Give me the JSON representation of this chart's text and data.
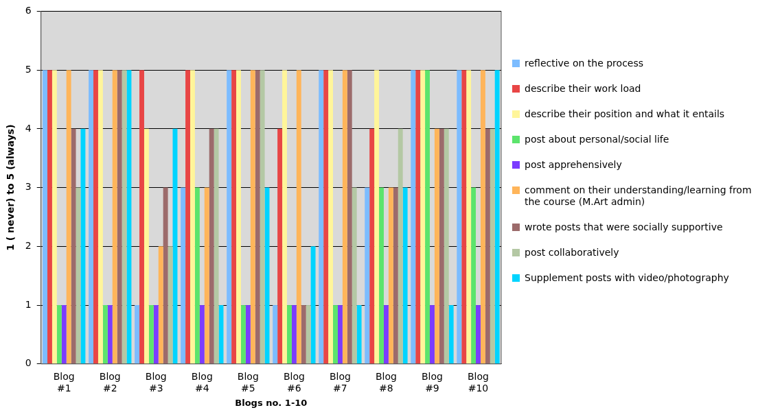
{
  "chart_data": {
    "type": "bar",
    "xlabel": "Blogs no. 1-10",
    "ylabel": "1 ( never) to 5 (always)",
    "categories": [
      "Blog #1",
      "Blog #2",
      "Blog #3",
      "Blog #4",
      "Blog #5",
      "Blog #6",
      "Blog #7",
      "Blog #8",
      "Blog #9",
      "Blog #10"
    ],
    "series": [
      {
        "name": "reflective on the process",
        "color": "#7cbcff",
        "values": [
          5,
          5,
          1,
          3,
          5,
          1,
          5,
          3,
          5,
          5
        ]
      },
      {
        "name": "describe their work load",
        "color": "#e84545",
        "values": [
          5,
          5,
          5,
          5,
          5,
          4,
          5,
          4,
          5,
          5
        ]
      },
      {
        "name": "describe their  position and what  it entails",
        "color": "#fff59a",
        "values": [
          5,
          5,
          4,
          5,
          5,
          5,
          5,
          5,
          5,
          5
        ]
      },
      {
        "name": "post about personal/social life",
        "color": "#5ce46c",
        "values": [
          1,
          1,
          1,
          3,
          1,
          1,
          1,
          3,
          5,
          3
        ]
      },
      {
        "name": "post apprehensively",
        "color": "#7b3cff",
        "values": [
          1,
          1,
          1,
          1,
          1,
          1,
          1,
          1,
          1,
          1
        ]
      },
      {
        "name": "comment on their understanding/learning from the course (M.Art admin)",
        "color": "#ffb55a",
        "values": [
          5,
          5,
          2,
          3,
          5,
          5,
          5,
          3,
          4,
          5
        ]
      },
      {
        "name": "wrote posts that were socially supportive",
        "color": "#9c6b6b",
        "values": [
          4,
          5,
          3,
          4,
          5,
          1,
          5,
          3,
          4,
          4
        ]
      },
      {
        "name": "post collaboratively",
        "color": "#b4c8a4",
        "values": [
          3,
          5,
          2,
          4,
          5,
          1,
          3,
          4,
          4,
          4
        ]
      },
      {
        "name": "Supplement posts  with video/photography",
        "color": "#00d4ff",
        "values": [
          4,
          5,
          4,
          1,
          3,
          2,
          1,
          3,
          1,
          5
        ]
      }
    ],
    "ylim": [
      0,
      6
    ],
    "yticks": [
      0,
      1,
      2,
      3,
      4,
      5,
      6
    ],
    "grid": "y",
    "legend": "right"
  }
}
